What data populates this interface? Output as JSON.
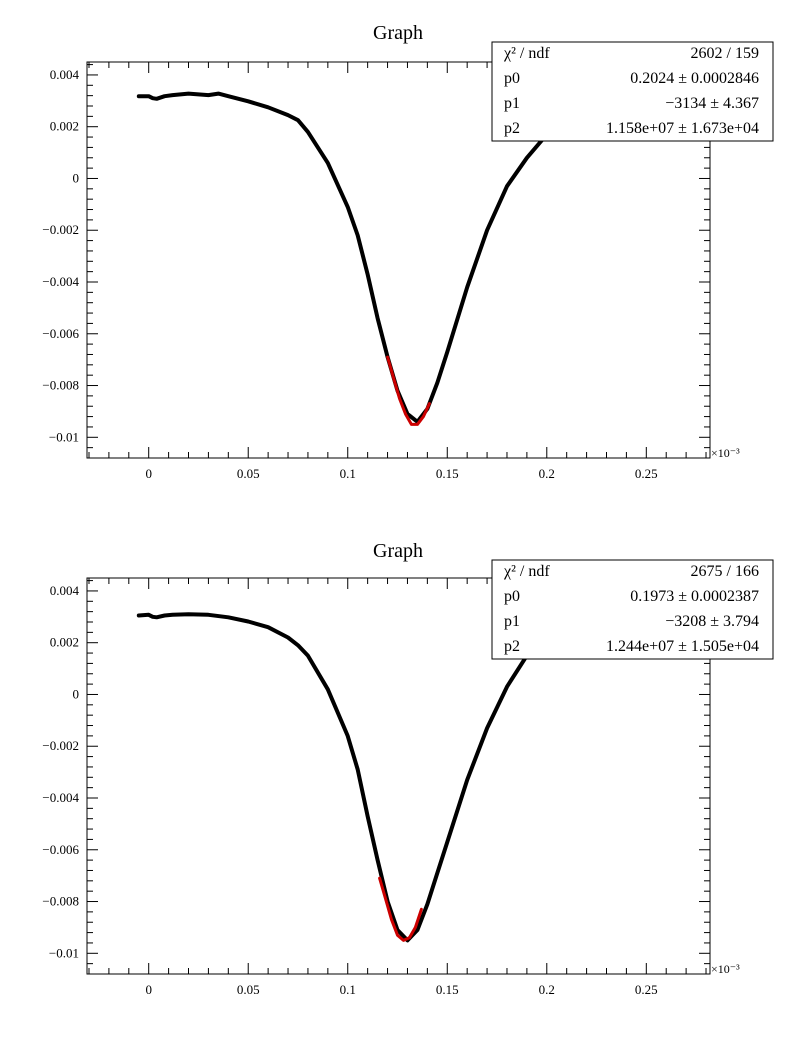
{
  "chart_data": [
    {
      "type": "line",
      "title": "Graph",
      "xlabel": "",
      "ylabel": "",
      "x_exponent_label": "×10⁻³",
      "xlim": [
        -0.031,
        0.282
      ],
      "ylim": [
        -0.0108,
        0.0045
      ],
      "x_ticks": [
        0,
        0.05,
        0.1,
        0.15,
        0.2,
        0.25
      ],
      "x_tick_labels": [
        "0",
        "0.05",
        "0.1",
        "0.15",
        "0.2",
        "0.25"
      ],
      "y_ticks": [
        0.004,
        0.002,
        0,
        -0.002,
        -0.004,
        -0.006,
        -0.008,
        -0.01
      ],
      "y_tick_labels": [
        "0.004",
        "0.002",
        "0",
        "−0.002",
        "−0.004",
        "−0.006",
        "−0.008",
        "−0.01"
      ],
      "series": [
        {
          "color": "#000000",
          "x": [
            -0.005,
            0,
            0.002,
            0.004,
            0.008,
            0.012,
            0.02,
            0.03,
            0.035,
            0.04,
            0.05,
            0.06,
            0.07,
            0.075,
            0.08,
            0.09,
            0.1,
            0.105,
            0.11,
            0.115,
            0.12,
            0.125,
            0.13,
            0.135,
            0.14,
            0.145,
            0.15,
            0.16,
            0.17,
            0.18,
            0.19,
            0.2,
            0.205
          ],
          "y": [
            0.00318,
            0.00318,
            0.0031,
            0.00308,
            0.00318,
            0.00322,
            0.00328,
            0.00322,
            0.00328,
            0.00318,
            0.00298,
            0.00275,
            0.00245,
            0.00225,
            0.0018,
            0.0006,
            -0.0011,
            -0.0022,
            -0.0037,
            -0.0054,
            -0.0069,
            -0.0082,
            -0.0091,
            -0.0094,
            -0.0089,
            -0.0079,
            -0.0067,
            -0.0042,
            -0.002,
            -0.0003,
            0.0008,
            0.0017,
            0.0022
          ]
        },
        {
          "color": "#cc0000",
          "x": [
            0.12,
            0.123,
            0.126,
            0.129,
            0.132,
            0.135,
            0.138,
            0.141
          ],
          "y": [
            -0.0069,
            -0.0077,
            -0.0085,
            -0.0091,
            -0.0095,
            -0.0095,
            -0.0092,
            -0.0087
          ]
        }
      ],
      "stats": {
        "header_label": "χ² / ndf",
        "header_value": "2602 / 159",
        "params": [
          {
            "name": "p0",
            "value": "0.2024 ± 0.0002846"
          },
          {
            "name": "p1",
            "value": "−3134 ± 4.367"
          },
          {
            "name": "p2",
            "value": "1.158e+07 ± 1.673e+04"
          }
        ]
      }
    },
    {
      "type": "line",
      "title": "Graph",
      "xlabel": "",
      "ylabel": "",
      "x_exponent_label": "×10⁻³",
      "xlim": [
        -0.031,
        0.282
      ],
      "ylim": [
        -0.0108,
        0.0045
      ],
      "x_ticks": [
        0,
        0.05,
        0.1,
        0.15,
        0.2,
        0.25
      ],
      "x_tick_labels": [
        "0",
        "0.05",
        "0.1",
        "0.15",
        "0.2",
        "0.25"
      ],
      "y_ticks": [
        0.004,
        0.002,
        0,
        -0.002,
        -0.004,
        -0.006,
        -0.008,
        -0.01
      ],
      "y_tick_labels": [
        "0.004",
        "0.002",
        "0",
        "−0.002",
        "−0.004",
        "−0.006",
        "−0.008",
        "−0.01"
      ],
      "series": [
        {
          "color": "#000000",
          "x": [
            -0.005,
            0,
            0.002,
            0.004,
            0.008,
            0.012,
            0.02,
            0.03,
            0.04,
            0.05,
            0.06,
            0.07,
            0.075,
            0.08,
            0.09,
            0.1,
            0.105,
            0.11,
            0.115,
            0.12,
            0.125,
            0.13,
            0.135,
            0.14,
            0.145,
            0.15,
            0.16,
            0.17,
            0.18,
            0.19,
            0.196
          ],
          "y": [
            0.00305,
            0.00308,
            0.003,
            0.00298,
            0.00305,
            0.00308,
            0.0031,
            0.00308,
            0.00298,
            0.00282,
            0.0026,
            0.0022,
            0.0019,
            0.0015,
            0.0002,
            -0.0016,
            -0.0029,
            -0.0047,
            -0.0064,
            -0.008,
            -0.0091,
            -0.0095,
            -0.0091,
            -0.0081,
            -0.0069,
            -0.0057,
            -0.0033,
            -0.0013,
            0.0003,
            0.0015,
            0.0021
          ]
        },
        {
          "color": "#cc0000",
          "x": [
            0.116,
            0.119,
            0.122,
            0.125,
            0.128,
            0.131,
            0.134,
            0.137
          ],
          "y": [
            -0.0071,
            -0.0079,
            -0.0087,
            -0.0093,
            -0.0095,
            -0.0094,
            -0.009,
            -0.0083
          ]
        }
      ],
      "stats": {
        "header_label": "χ² / ndf",
        "header_value": "2675 / 166",
        "params": [
          {
            "name": "p0",
            "value": "0.1973 ± 0.0002387"
          },
          {
            "name": "p1",
            "value": "−3208 ± 3.794"
          },
          {
            "name": "p2",
            "value": "1.244e+07 ± 1.505e+04"
          }
        ]
      }
    }
  ]
}
